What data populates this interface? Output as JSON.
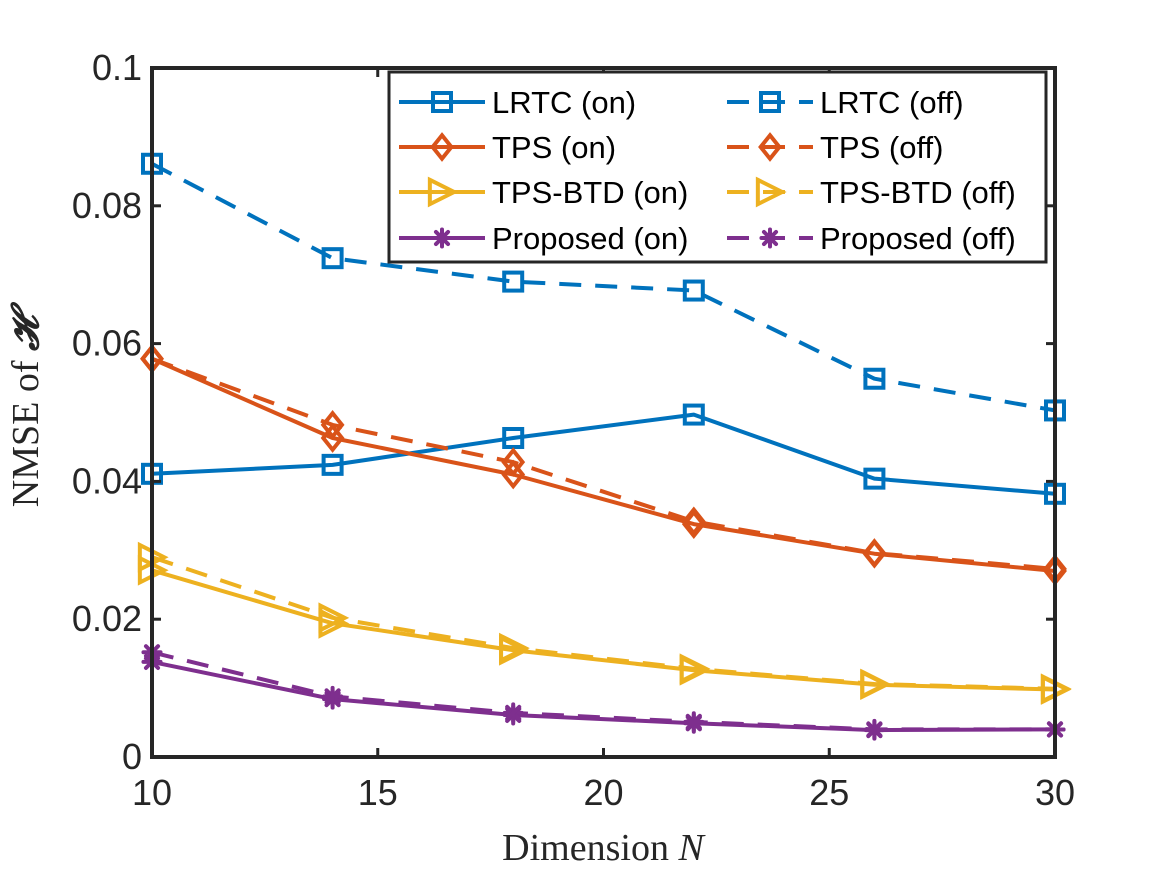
{
  "chart_data": {
    "type": "line",
    "title": "",
    "xlabel": "Dimension",
    "xlabel_var": "N",
    "ylabel": "NMSE of",
    "ylabel_var": "𝓗",
    "x": [
      10,
      14,
      18,
      22,
      26,
      30
    ],
    "xlim": [
      10,
      30
    ],
    "ylim": [
      0,
      0.1
    ],
    "xticks": [
      "10",
      "15",
      "20",
      "25",
      "30"
    ],
    "yticks": [
      "0",
      "0.02",
      "0.04",
      "0.06",
      "0.08",
      "0.1"
    ],
    "grid": false,
    "legend_position": "top-right",
    "series": [
      {
        "name": "LRTC (on)",
        "color": "#0072BD",
        "marker": "square",
        "dash": "solid",
        "values": [
          0.0411,
          0.0424,
          0.0463,
          0.0497,
          0.0404,
          0.0382
        ]
      },
      {
        "name": "LRTC (off)",
        "color": "#0072BD",
        "marker": "square",
        "dash": "dashed",
        "values": [
          0.0861,
          0.0724,
          0.069,
          0.0677,
          0.0549,
          0.0503
        ]
      },
      {
        "name": "TPS (on)",
        "color": "#D95319",
        "marker": "diamond",
        "dash": "solid",
        "values": [
          0.0578,
          0.0463,
          0.041,
          0.0338,
          0.0295,
          0.027
        ]
      },
      {
        "name": "TPS (off)",
        "color": "#D95319",
        "marker": "diamond",
        "dash": "dashed",
        "values": [
          0.0578,
          0.0482,
          0.0428,
          0.0342,
          0.0296,
          0.0273
        ]
      },
      {
        "name": "TPS-BTD (on)",
        "color": "#EDB120",
        "marker": "triangle-right",
        "dash": "solid",
        "values": [
          0.0271,
          0.0194,
          0.0155,
          0.0126,
          0.0105,
          0.0098
        ]
      },
      {
        "name": "TPS-BTD (off)",
        "color": "#EDB120",
        "marker": "triangle-right",
        "dash": "dashed",
        "values": [
          0.029,
          0.0202,
          0.0158,
          0.0128,
          0.0106,
          0.0099
        ]
      },
      {
        "name": "Proposed (on)",
        "color": "#7E2F8E",
        "marker": "asterisk",
        "dash": "solid",
        "values": [
          0.0138,
          0.0084,
          0.0061,
          0.0049,
          0.0039,
          0.004
        ]
      },
      {
        "name": "Proposed (off)",
        "color": "#7E2F8E",
        "marker": "asterisk",
        "dash": "dashed",
        "values": [
          0.0152,
          0.0088,
          0.0064,
          0.0051,
          0.004,
          0.004
        ]
      }
    ]
  }
}
